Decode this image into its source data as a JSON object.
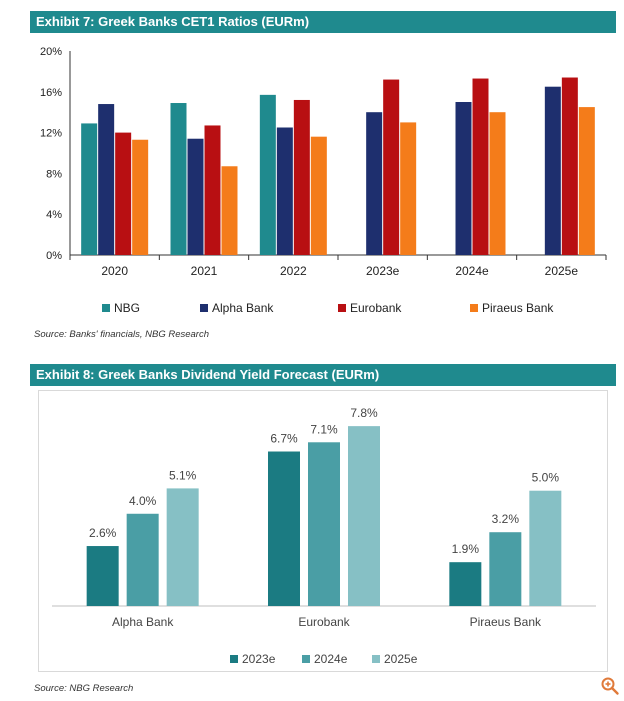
{
  "exhibit7": {
    "header": "Exhibit 7: Greek Banks CET1 Ratios (EURm)",
    "source": "Source: Banks' financials, NBG Research"
  },
  "exhibit8": {
    "header": "Exhibit 8: Greek Banks Dividend Yield Forecast (EURm)",
    "source": "Source: NBG Research"
  },
  "chart_data": [
    {
      "type": "bar",
      "title": "Exhibit 7: Greek Banks CET1 Ratios (EURm)",
      "categories": [
        "2020",
        "2021",
        "2022",
        "2023e",
        "2024e",
        "2025e"
      ],
      "series": [
        {
          "name": "NBG",
          "color": "#1f8a8e",
          "values": [
            12.9,
            14.9,
            15.7,
            null,
            null,
            null
          ]
        },
        {
          "name": "Alpha Bank",
          "color": "#1e2f6e",
          "values": [
            14.8,
            11.4,
            12.5,
            14.0,
            15.0,
            16.5
          ]
        },
        {
          "name": "Eurobank",
          "color": "#b80f12",
          "values": [
            12.0,
            12.7,
            15.2,
            17.2,
            17.3,
            17.4
          ]
        },
        {
          "name": "Piraeus Bank",
          "color": "#f47c1a",
          "values": [
            11.3,
            8.7,
            11.6,
            13.0,
            14.0,
            14.5
          ]
        }
      ],
      "yticks": [
        "0%",
        "4%",
        "8%",
        "12%",
        "16%",
        "20%"
      ],
      "ylim": [
        0,
        20
      ],
      "grid": false,
      "legend": "bottom"
    },
    {
      "type": "bar",
      "title": "Exhibit 8: Greek Banks Dividend Yield Forecast (EURm)",
      "categories": [
        "Alpha Bank",
        "Eurobank",
        "Piraeus Bank"
      ],
      "series": [
        {
          "name": "2023e",
          "color": "#1b7b82",
          "values": [
            2.6,
            6.7,
            1.9
          ],
          "labels": [
            "2.6%",
            "6.7%",
            "1.9%"
          ]
        },
        {
          "name": "2024e",
          "color": "#4a9ea5",
          "values": [
            4.0,
            7.1,
            3.2
          ],
          "labels": [
            "4.0%",
            "7.1%",
            "3.2%"
          ]
        },
        {
          "name": "2025e",
          "color": "#86c0c5",
          "values": [
            5.1,
            7.8,
            5.0
          ],
          "labels": [
            "5.1%",
            "7.8%",
            "5.0%"
          ]
        }
      ],
      "ylim": [
        0,
        8.5
      ],
      "grid": false,
      "legend": "bottom"
    }
  ],
  "icons": {
    "zoom": "zoom-icon"
  },
  "colors": {
    "header": "#1f8a8e",
    "axis": "#333333"
  }
}
